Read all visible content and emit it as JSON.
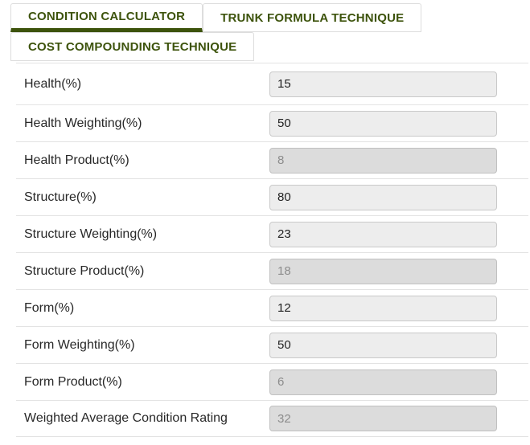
{
  "colors": {
    "accent_green": "#3d530c",
    "tab_border": "#dddddd",
    "row_divider": "#e3e3e3",
    "input_bg": "#ededed",
    "input_disabled_bg": "#dcdcdc"
  },
  "tabs": [
    {
      "label": "CONDITION CALCULATOR",
      "active": true
    },
    {
      "label": "TRUNK FORMULA TECHNIQUE",
      "active": false
    },
    {
      "label": "COST COMPOUNDING TECHNIQUE",
      "active": false
    }
  ],
  "form": {
    "rows": [
      {
        "label": "Health(%)",
        "value": "15",
        "disabled": false
      },
      {
        "label": "Health Weighting(%)",
        "value": "50",
        "disabled": false
      },
      {
        "label": "Health Product(%)",
        "value": "8",
        "disabled": true
      },
      {
        "label": "Structure(%)",
        "value": "80",
        "disabled": false
      },
      {
        "label": "Structure Weighting(%)",
        "value": "23",
        "disabled": false
      },
      {
        "label": "Structure Product(%)",
        "value": "18",
        "disabled": true
      },
      {
        "label": "Form(%)",
        "value": "12",
        "disabled": false
      },
      {
        "label": "Form Weighting(%)",
        "value": "50",
        "disabled": false
      },
      {
        "label": "Form Product(%)",
        "value": "6",
        "disabled": true
      },
      {
        "label": "Weighted Average Condition Rating",
        "value": "32",
        "disabled": true
      }
    ]
  }
}
